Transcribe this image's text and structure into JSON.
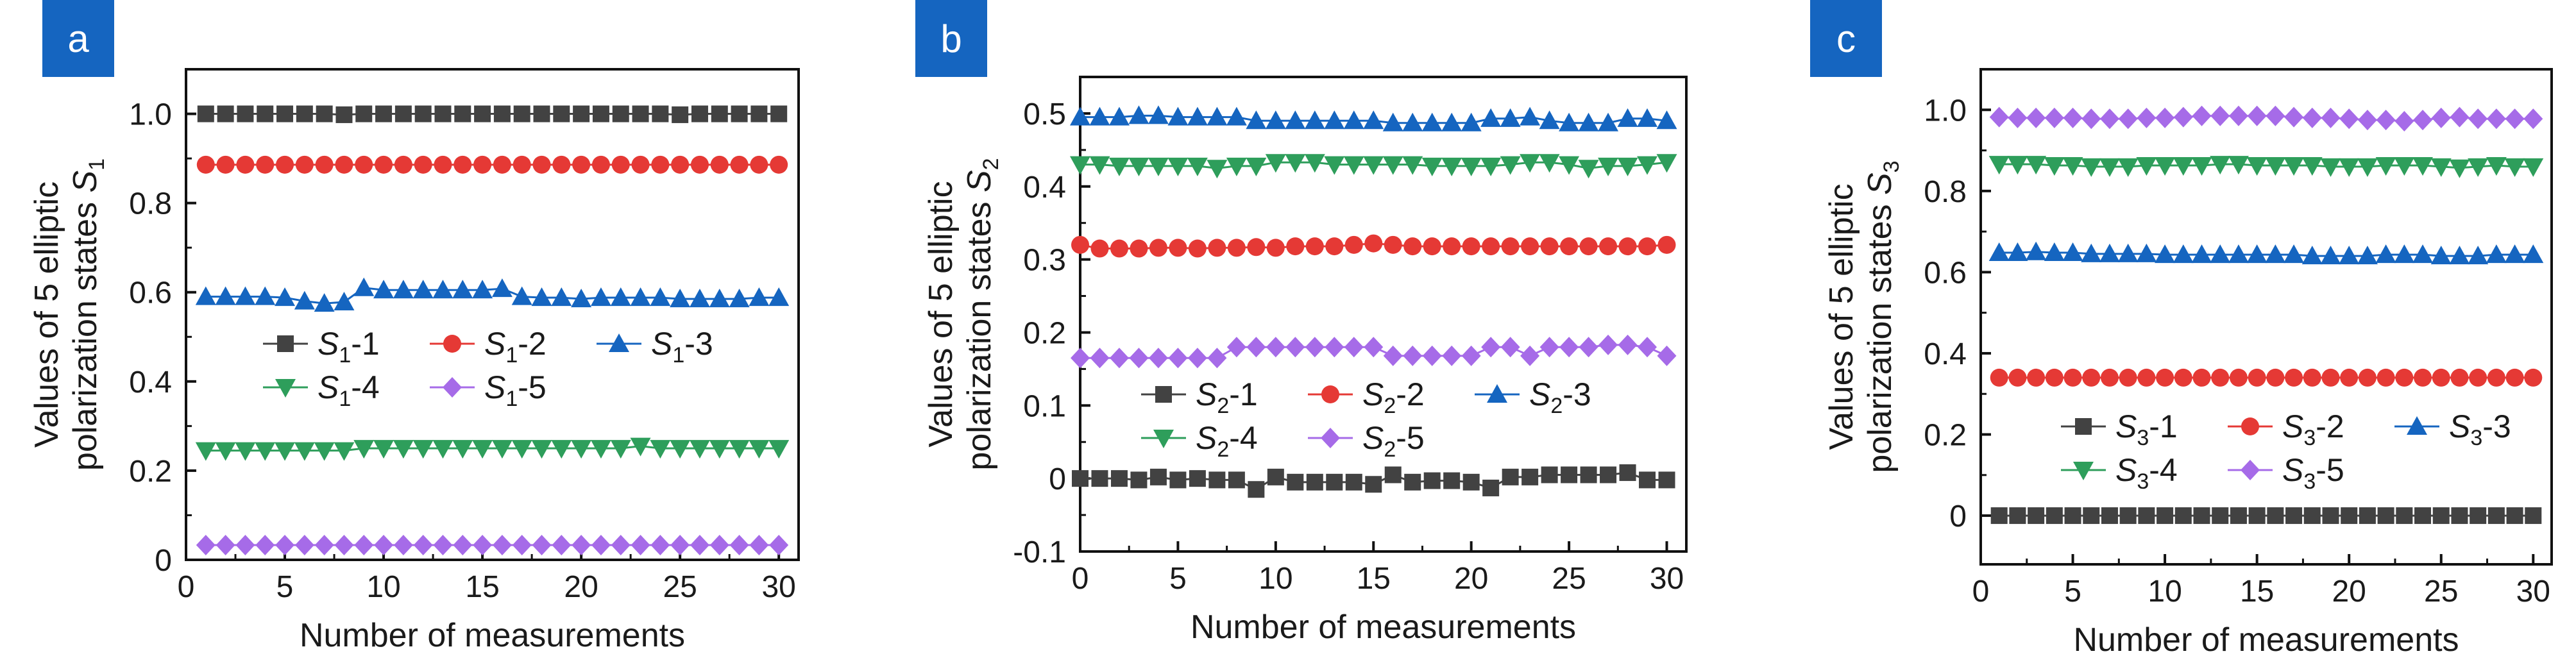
{
  "colors": {
    "s1": "#424242",
    "s2": "#e53935",
    "s3": "#1565c0",
    "s4": "#2e9e5b",
    "s5": "#a66be8",
    "tag": "#1565c0"
  },
  "chart_data": [
    {
      "panel_label": "a",
      "type": "line",
      "xlabel": "Number of measurements",
      "ylabel_line1": "Values of 5 elliptic",
      "ylabel_line2": "polarization states S",
      "ylabel_sub": "1",
      "xlim": [
        0,
        31
      ],
      "ylim": [
        0,
        1.1
      ],
      "xticks": [
        0,
        5,
        10,
        15,
        20,
        25,
        30
      ],
      "yticks": [
        0,
        0.2,
        0.4,
        0.6,
        0.8,
        1.0
      ],
      "ytick_labels": [
        "0",
        "0.2",
        "0.4",
        "0.6",
        "0.8",
        "1.0"
      ],
      "legend_loc": "center",
      "x": [
        1,
        2,
        3,
        4,
        5,
        6,
        7,
        8,
        9,
        10,
        11,
        12,
        13,
        14,
        15,
        16,
        17,
        18,
        19,
        20,
        21,
        22,
        23,
        24,
        25,
        26,
        27,
        28,
        29,
        30
      ],
      "series": [
        {
          "sym": "S",
          "sub": "1",
          "suffix": "-1",
          "marker": "square",
          "color_key": "s1",
          "values": [
            1.0,
            1.0,
            1.0,
            1.0,
            1.0,
            1.0,
            1.0,
            0.998,
            1.0,
            1.0,
            1.0,
            1.0,
            1.0,
            1.0,
            1.0,
            1.0,
            1.0,
            1.0,
            1.0,
            1.0,
            1.0,
            1.0,
            1.0,
            1.0,
            0.998,
            1.0,
            1.0,
            1.0,
            1.0,
            1.0
          ]
        },
        {
          "sym": "S",
          "sub": "1",
          "suffix": "-2",
          "marker": "circle",
          "color_key": "s2",
          "values": [
            0.886,
            0.886,
            0.886,
            0.886,
            0.886,
            0.886,
            0.886,
            0.886,
            0.886,
            0.886,
            0.886,
            0.886,
            0.886,
            0.886,
            0.886,
            0.886,
            0.886,
            0.886,
            0.886,
            0.886,
            0.886,
            0.886,
            0.886,
            0.886,
            0.886,
            0.886,
            0.886,
            0.886,
            0.886,
            0.886
          ]
        },
        {
          "sym": "S",
          "sub": "1",
          "suffix": "-3",
          "marker": "triangle-up",
          "color_key": "s3",
          "values": [
            0.59,
            0.59,
            0.59,
            0.59,
            0.588,
            0.58,
            0.575,
            0.578,
            0.61,
            0.605,
            0.605,
            0.605,
            0.605,
            0.605,
            0.605,
            0.608,
            0.59,
            0.588,
            0.588,
            0.585,
            0.588,
            0.588,
            0.588,
            0.588,
            0.585,
            0.585,
            0.585,
            0.585,
            0.588,
            0.588
          ]
        },
        {
          "sym": "S",
          "sub": "1",
          "suffix": "-4",
          "marker": "triangle-down",
          "color_key": "s4",
          "values": [
            0.245,
            0.245,
            0.245,
            0.245,
            0.245,
            0.245,
            0.245,
            0.245,
            0.25,
            0.25,
            0.25,
            0.25,
            0.25,
            0.25,
            0.25,
            0.25,
            0.25,
            0.25,
            0.25,
            0.25,
            0.25,
            0.25,
            0.255,
            0.25,
            0.25,
            0.25,
            0.25,
            0.25,
            0.25,
            0.25
          ]
        },
        {
          "sym": "S",
          "sub": "1",
          "suffix": "-5",
          "marker": "diamond",
          "color_key": "s5",
          "values": [
            0.033,
            0.033,
            0.033,
            0.033,
            0.033,
            0.033,
            0.033,
            0.033,
            0.033,
            0.033,
            0.033,
            0.033,
            0.033,
            0.033,
            0.033,
            0.033,
            0.033,
            0.033,
            0.033,
            0.033,
            0.033,
            0.033,
            0.033,
            0.033,
            0.033,
            0.033,
            0.033,
            0.033,
            0.033,
            0.033
          ]
        }
      ]
    },
    {
      "panel_label": "b",
      "type": "line",
      "xlabel": "Number of measurements",
      "ylabel_line1": "Values of 5 elliptic",
      "ylabel_line2": "polarization states S",
      "ylabel_sub": "2",
      "xlim": [
        0,
        31
      ],
      "ylim": [
        -0.1,
        0.55
      ],
      "xticks": [
        0,
        5,
        10,
        15,
        20,
        25,
        30
      ],
      "yticks": [
        -0.1,
        0,
        0.1,
        0.2,
        0.3,
        0.4,
        0.5
      ],
      "ytick_labels": [
        "-0.1",
        "0",
        "0.1",
        "0.2",
        "0.3",
        "0.4",
        "0.5"
      ],
      "legend_loc": "lower center",
      "x": [
        0,
        1,
        2,
        3,
        4,
        5,
        6,
        7,
        8,
        9,
        10,
        11,
        12,
        13,
        14,
        15,
        16,
        17,
        18,
        19,
        20,
        21,
        22,
        23,
        24,
        25,
        26,
        27,
        28,
        29,
        30
      ],
      "series": [
        {
          "sym": "S",
          "sub": "2",
          "suffix": "-1",
          "marker": "square",
          "color_key": "s1",
          "values": [
            0.0,
            0.0,
            0.0,
            -0.002,
            0.002,
            -0.002,
            0.0,
            -0.002,
            -0.002,
            -0.015,
            0.002,
            -0.005,
            -0.005,
            -0.005,
            -0.005,
            -0.008,
            0.005,
            -0.005,
            -0.003,
            -0.003,
            -0.005,
            -0.013,
            0.002,
            0.002,
            0.005,
            0.005,
            0.005,
            0.005,
            0.008,
            -0.002,
            -0.002
          ]
        },
        {
          "sym": "S",
          "sub": "2",
          "suffix": "-2",
          "marker": "circle",
          "color_key": "s2",
          "values": [
            0.32,
            0.315,
            0.315,
            0.315,
            0.316,
            0.316,
            0.315,
            0.316,
            0.316,
            0.317,
            0.316,
            0.318,
            0.318,
            0.318,
            0.32,
            0.322,
            0.32,
            0.318,
            0.318,
            0.318,
            0.318,
            0.318,
            0.318,
            0.318,
            0.318,
            0.318,
            0.318,
            0.318,
            0.318,
            0.318,
            0.32
          ]
        },
        {
          "sym": "S",
          "sub": "2",
          "suffix": "-3",
          "marker": "triangle-up",
          "color_key": "s3",
          "values": [
            0.495,
            0.495,
            0.495,
            0.497,
            0.497,
            0.495,
            0.495,
            0.495,
            0.495,
            0.49,
            0.49,
            0.49,
            0.49,
            0.49,
            0.49,
            0.49,
            0.487,
            0.487,
            0.487,
            0.487,
            0.487,
            0.493,
            0.493,
            0.495,
            0.49,
            0.487,
            0.487,
            0.487,
            0.493,
            0.493,
            0.49
          ]
        },
        {
          "sym": "S",
          "sub": "2",
          "suffix": "-4",
          "marker": "triangle-down",
          "color_key": "s4",
          "values": [
            0.43,
            0.43,
            0.428,
            0.428,
            0.428,
            0.428,
            0.428,
            0.425,
            0.428,
            0.428,
            0.433,
            0.433,
            0.433,
            0.43,
            0.43,
            0.43,
            0.43,
            0.43,
            0.428,
            0.428,
            0.428,
            0.428,
            0.43,
            0.433,
            0.433,
            0.43,
            0.425,
            0.428,
            0.428,
            0.43,
            0.433
          ]
        },
        {
          "sym": "S",
          "sub": "2",
          "suffix": "-5",
          "marker": "diamond",
          "color_key": "s5",
          "values": [
            0.165,
            0.165,
            0.165,
            0.165,
            0.165,
            0.165,
            0.165,
            0.165,
            0.18,
            0.18,
            0.18,
            0.18,
            0.18,
            0.18,
            0.18,
            0.18,
            0.168,
            0.168,
            0.168,
            0.168,
            0.168,
            0.18,
            0.18,
            0.168,
            0.18,
            0.18,
            0.18,
            0.183,
            0.183,
            0.18,
            0.168
          ]
        }
      ]
    },
    {
      "panel_label": "c",
      "type": "line",
      "xlabel": "Number of measurements",
      "ylabel_line1": "Values of 5 elliptic",
      "ylabel_line2": "polarization states S",
      "ylabel_sub": "3",
      "xlim": [
        0,
        31
      ],
      "ylim": [
        -0.12,
        1.1
      ],
      "xticks": [
        0,
        5,
        10,
        15,
        20,
        25,
        30
      ],
      "yticks": [
        0,
        0.2,
        0.4,
        0.6,
        0.8,
        1.0
      ],
      "ytick_labels": [
        "0",
        "0.2",
        "0.4",
        "0.6",
        "0.8",
        "1.0"
      ],
      "legend_loc": "lower center",
      "x": [
        1,
        2,
        3,
        4,
        5,
        6,
        7,
        8,
        9,
        10,
        11,
        12,
        13,
        14,
        15,
        16,
        17,
        18,
        19,
        20,
        21,
        22,
        23,
        24,
        25,
        26,
        27,
        28,
        29,
        30
      ],
      "series": [
        {
          "sym": "S",
          "sub": "3",
          "suffix": "-1",
          "marker": "square",
          "color_key": "s1",
          "values": [
            0.0,
            0.0,
            0.0,
            0.0,
            0.0,
            0.0,
            0.0,
            0.0,
            0.0,
            0.0,
            0.0,
            0.0,
            0.0,
            0.0,
            0.0,
            0.0,
            0.0,
            0.0,
            0.0,
            0.0,
            0.0,
            0.0,
            0.0,
            0.0,
            0.0,
            0.0,
            0.0,
            0.0,
            0.0,
            0.0
          ]
        },
        {
          "sym": "S",
          "sub": "3",
          "suffix": "-2",
          "marker": "circle",
          "color_key": "s2",
          "values": [
            0.34,
            0.34,
            0.34,
            0.34,
            0.34,
            0.34,
            0.34,
            0.34,
            0.34,
            0.34,
            0.34,
            0.34,
            0.34,
            0.34,
            0.34,
            0.34,
            0.34,
            0.34,
            0.34,
            0.34,
            0.34,
            0.34,
            0.34,
            0.34,
            0.34,
            0.34,
            0.34,
            0.34,
            0.34,
            0.34
          ]
        },
        {
          "sym": "S",
          "sub": "3",
          "suffix": "-3",
          "marker": "triangle-up",
          "color_key": "s3",
          "values": [
            0.648,
            0.648,
            0.65,
            0.648,
            0.648,
            0.645,
            0.645,
            0.645,
            0.645,
            0.643,
            0.643,
            0.643,
            0.643,
            0.643,
            0.643,
            0.643,
            0.643,
            0.64,
            0.64,
            0.64,
            0.64,
            0.643,
            0.643,
            0.643,
            0.64,
            0.64,
            0.64,
            0.643,
            0.643,
            0.643
          ]
        },
        {
          "sym": "S",
          "sub": "3",
          "suffix": "-4",
          "marker": "triangle-down",
          "color_key": "s4",
          "values": [
            0.866,
            0.866,
            0.866,
            0.863,
            0.863,
            0.86,
            0.86,
            0.86,
            0.863,
            0.863,
            0.863,
            0.863,
            0.866,
            0.866,
            0.863,
            0.863,
            0.863,
            0.863,
            0.86,
            0.86,
            0.86,
            0.863,
            0.863,
            0.863,
            0.86,
            0.857,
            0.86,
            0.863,
            0.86,
            0.86
          ]
        },
        {
          "sym": "S",
          "sub": "3",
          "suffix": "-5",
          "marker": "diamond",
          "color_key": "s5",
          "values": [
            0.982,
            0.98,
            0.98,
            0.98,
            0.98,
            0.978,
            0.978,
            0.978,
            0.98,
            0.98,
            0.982,
            0.985,
            0.985,
            0.985,
            0.985,
            0.985,
            0.982,
            0.98,
            0.98,
            0.978,
            0.975,
            0.975,
            0.972,
            0.975,
            0.98,
            0.982,
            0.978,
            0.978,
            0.978,
            0.978
          ]
        }
      ]
    }
  ]
}
